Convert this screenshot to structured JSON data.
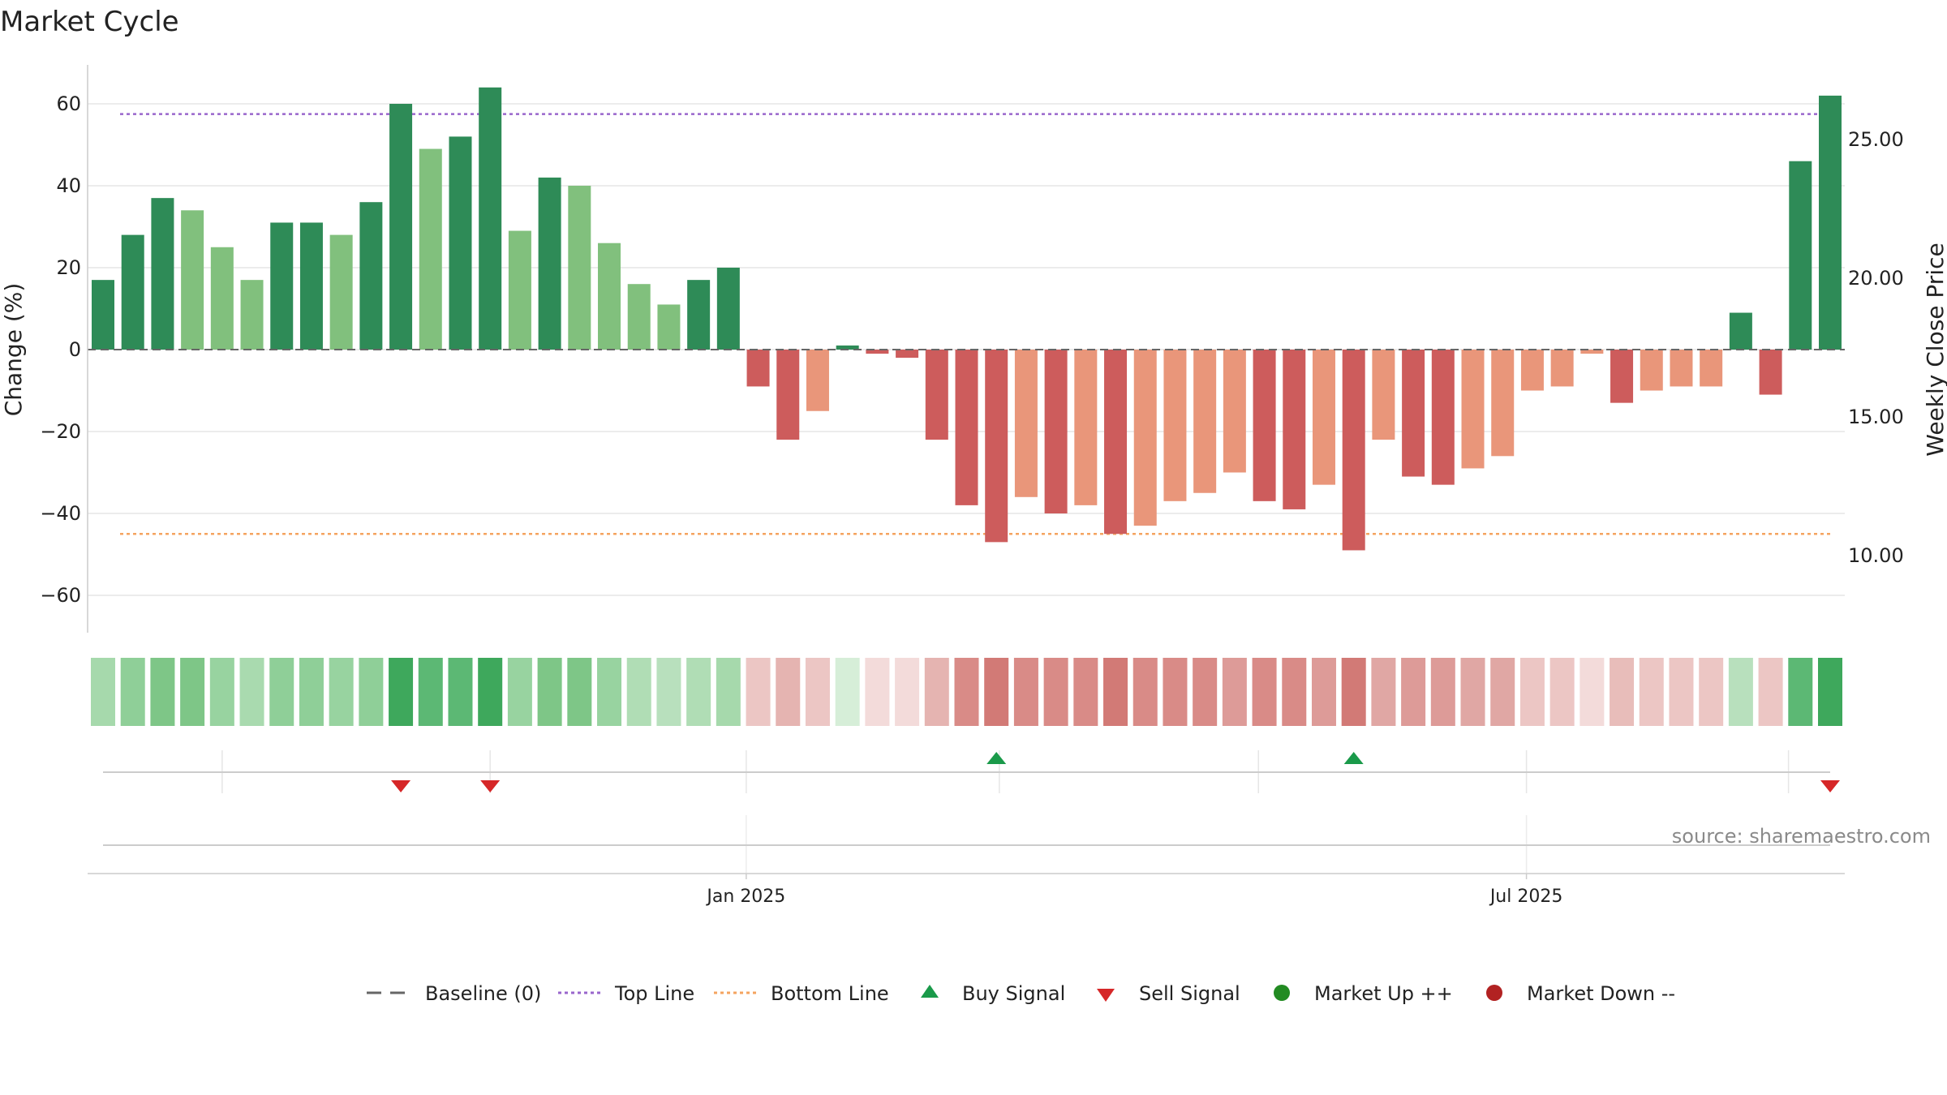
{
  "chart_data": {
    "type": "bar",
    "title": "Market Cycle",
    "ylabel": "Change (%)",
    "y2label": "Weekly Close Price",
    "ylim": [
      -70,
      70
    ],
    "yticks": [
      60,
      40,
      20,
      0,
      -20,
      -40,
      -60
    ],
    "ytick_labels": [
      "60",
      "40",
      "20",
      "0",
      "−20",
      "−40",
      "−60"
    ],
    "y2lim": [
      7.2,
      28.4
    ],
    "y2ticks": [
      25,
      20,
      15,
      10
    ],
    "y2tick_labels": [
      "25.00",
      "20.00",
      "15.00",
      "10.00"
    ],
    "top_line": 57.5,
    "bottom_line": -45,
    "baseline": 0,
    "values": [
      17,
      28,
      37,
      34,
      25,
      17,
      31,
      31,
      28,
      36,
      60,
      49,
      52,
      64,
      29,
      42,
      40,
      26,
      16,
      11,
      17,
      20,
      -9,
      -22,
      -15,
      1,
      -1,
      -2,
      -22,
      -38,
      -47,
      -36,
      -40,
      -38,
      -45,
      -43,
      -37,
      -35,
      -30,
      -37,
      -39,
      -33,
      -49,
      -22,
      -31,
      -33,
      -29,
      -26,
      -10,
      -9,
      -1,
      -13,
      -10,
      -9,
      -9,
      9,
      -11,
      46,
      62
    ],
    "bar_colors": [
      "#2e8b57",
      "#2e8b57",
      "#2e8b57",
      "#81c07d",
      "#81c07d",
      "#81c07d",
      "#2e8b57",
      "#2e8b57",
      "#81c07d",
      "#2e8b57",
      "#2e8b57",
      "#81c07d",
      "#2e8b57",
      "#2e8b57",
      "#81c07d",
      "#2e8b57",
      "#81c07d",
      "#81c07d",
      "#81c07d",
      "#81c07d",
      "#2e8b57",
      "#2e8b57",
      "#cd5c5c",
      "#cd5c5c",
      "#e9967a",
      "#2e8b57",
      "#cd5c5c",
      "#cd5c5c",
      "#cd5c5c",
      "#cd5c5c",
      "#cd5c5c",
      "#e9967a",
      "#cd5c5c",
      "#e9967a",
      "#cd5c5c",
      "#e9967a",
      "#e9967a",
      "#e9967a",
      "#e9967a",
      "#cd5c5c",
      "#cd5c5c",
      "#e9967a",
      "#cd5c5c",
      "#e9967a",
      "#cd5c5c",
      "#cd5c5c",
      "#e9967a",
      "#e9967a",
      "#e9967a",
      "#e9967a",
      "#e9967a",
      "#cd5c5c",
      "#e9967a",
      "#e9967a",
      "#e9967a",
      "#2e8b57",
      "#cd5c5c",
      "#2e8b57",
      "#2e8b57"
    ],
    "heat_colors": [
      "#a6d9ac",
      "#8fcf98",
      "#7ec687",
      "#7ec687",
      "#98d3a0",
      "#a9daaf",
      "#8fcf98",
      "#8fcf98",
      "#98d3a0",
      "#8fcf98",
      "#3ea85c",
      "#5cb874",
      "#5cb874",
      "#3ea85c",
      "#98d3a0",
      "#7ec687",
      "#7ec687",
      "#98d3a0",
      "#b0ddb5",
      "#b8e0bd",
      "#b0ddb5",
      "#a6d9ac",
      "#ecc6c4",
      "#e5b4b1",
      "#ecc6c4",
      "#d6eed8",
      "#f3dbda",
      "#f3dbda",
      "#e5b4b1",
      "#d98b87",
      "#d27a76",
      "#d98b87",
      "#d98b87",
      "#d98b87",
      "#d27a76",
      "#d98b87",
      "#d98b87",
      "#d98b87",
      "#dd9b98",
      "#d98b87",
      "#d98b87",
      "#dd9b98",
      "#d27a76",
      "#e0a7a4",
      "#dd9b98",
      "#dd9b98",
      "#e0a7a4",
      "#e0a7a4",
      "#ecc6c4",
      "#ecc6c4",
      "#f3dbda",
      "#e8bdba",
      "#ecc6c4",
      "#ecc6c4",
      "#ecc6c4",
      "#b8e0bd",
      "#ecc6c4",
      "#5cb874",
      "#3ea85c"
    ],
    "buy_signals": [
      30,
      42
    ],
    "sell_signals": [
      10,
      13,
      58
    ],
    "x_tick_labels": [
      {
        "label": "Jan 2025",
        "bar": 21.6
      },
      {
        "label": "Jul 2025",
        "bar": 47.8
      }
    ],
    "signal_grid_bars": [
      4,
      13,
      21.6,
      30.1,
      38.8,
      47.8,
      56.6
    ],
    "baseline_color": "#666666",
    "top_line_color": "#9966cc",
    "bottom_line_color": "#f4a460",
    "buy_color": "#1a9a4a",
    "sell_color": "#d62728",
    "market_up_color": "#228b22",
    "market_down_color": "#b22222"
  },
  "legend": {
    "baseline": "Baseline (0)",
    "top_line": "Top Line",
    "bottom_line": "Bottom Line",
    "buy_signal": "Buy Signal",
    "sell_signal": "Sell Signal",
    "market_up": "Market Up ++",
    "market_down": "Market Down --"
  },
  "source": "source: sharemaestro.com"
}
